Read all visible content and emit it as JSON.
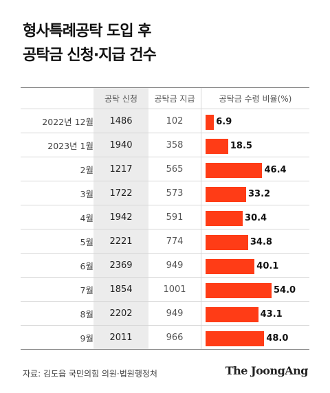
{
  "title_line1": "형사특례공탁 도입 후",
  "title_line2": "공탁금 신청·지급 건수",
  "headers": {
    "apply": "공탁 신청",
    "pay": "공탁금 지급",
    "ratio": "공탁금 수령 비율(%)"
  },
  "rows": [
    {
      "month": "2022년 12월",
      "apply": "1486",
      "pay": "102",
      "ratio": "6.9"
    },
    {
      "month": "2023년 1월",
      "apply": "1940",
      "pay": "358",
      "ratio": "18.5"
    },
    {
      "month": "2월",
      "apply": "1217",
      "pay": "565",
      "ratio": "46.4"
    },
    {
      "month": "3월",
      "apply": "1722",
      "pay": "573",
      "ratio": "33.2"
    },
    {
      "month": "4월",
      "apply": "1942",
      "pay": "591",
      "ratio": "30.4"
    },
    {
      "month": "5월",
      "apply": "2221",
      "pay": "774",
      "ratio": "34.8"
    },
    {
      "month": "6월",
      "apply": "2369",
      "pay": "949",
      "ratio": "40.1"
    },
    {
      "month": "7월",
      "apply": "1854",
      "pay": "1001",
      "ratio": "54.0"
    },
    {
      "month": "8월",
      "apply": "2202",
      "pay": "949",
      "ratio": "43.1"
    },
    {
      "month": "9월",
      "apply": "2011",
      "pay": "966",
      "ratio": "48.0"
    }
  ],
  "source": "자료: 김도읍 국민의힘 의원·법원행정처",
  "brand": "The JoongAng",
  "colors": {
    "bar": "#ff3c16",
    "apply_bg": "#ececec"
  },
  "chart_data": {
    "type": "bar",
    "title": "형사특례공탁 도입 후 공탁금 신청·지급 건수",
    "categories": [
      "2022년 12월",
      "2023년 1월",
      "2월",
      "3월",
      "4월",
      "5월",
      "6월",
      "7월",
      "8월",
      "9월"
    ],
    "series": [
      {
        "name": "공탁 신청",
        "values": [
          1486,
          1940,
          1217,
          1722,
          1942,
          2221,
          2369,
          1854,
          2202,
          2011
        ]
      },
      {
        "name": "공탁금 지급",
        "values": [
          102,
          358,
          565,
          573,
          591,
          774,
          949,
          1001,
          949,
          966
        ]
      },
      {
        "name": "공탁금 수령 비율(%)",
        "values": [
          6.9,
          18.5,
          46.4,
          33.2,
          30.4,
          34.8,
          40.1,
          54.0,
          43.1,
          48.0
        ]
      }
    ]
  }
}
